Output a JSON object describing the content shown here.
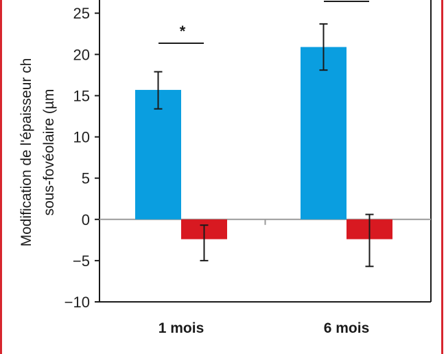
{
  "frame_color": "#d7262e",
  "chart_data": {
    "type": "bar",
    "ylabel_lines": [
      "Modification de l'épaisseur ch",
      "sous-fovéolaire (µm"
    ],
    "xlabel": "",
    "categories": [
      "1 mois",
      "6 mois"
    ],
    "series": [
      {
        "color": "#0a9ee0",
        "values": [
          15.7,
          20.9
        ],
        "error_low": [
          13.4,
          18.1
        ],
        "error_high": [
          17.9,
          23.7
        ]
      },
      {
        "color": "#d81921",
        "values": [
          -2.4,
          -2.4
        ],
        "error_low": [
          -5.0,
          -5.7
        ],
        "error_high": [
          -0.7,
          0.6
        ]
      }
    ],
    "ylim": [
      -10,
      26.6
    ],
    "yticks": [
      -10,
      -5,
      0,
      5,
      10,
      15,
      20,
      25
    ],
    "ytick_labels": [
      "−10",
      "−5",
      "0",
      "5",
      "10",
      "15",
      "20",
      "25"
    ],
    "significance": [
      {
        "category_index": 0,
        "label": "*"
      },
      {
        "category_index": 1,
        "label": ""
      }
    ],
    "grid": false,
    "legend": "none"
  }
}
